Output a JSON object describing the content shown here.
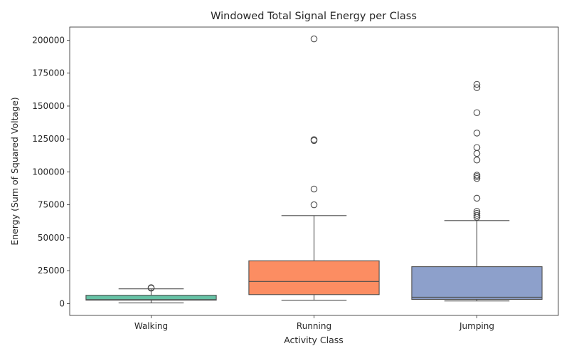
{
  "chart_data": {
    "type": "box",
    "title": "Windowed Total Signal Energy per Class",
    "xlabel": "Activity Class",
    "ylabel": "Energy (Sum of Squared Voltage)",
    "ylim": [
      -9000,
      210000
    ],
    "yticks": [
      0,
      25000,
      50000,
      75000,
      100000,
      125000,
      150000,
      175000,
      200000
    ],
    "grid": false,
    "categories": [
      "Walking",
      "Running",
      "Jumping"
    ],
    "boxes": [
      {
        "category": "Walking",
        "color": "#66c2a5",
        "whisker_low": 500,
        "q1": 2600,
        "median": 3000,
        "q3": 6300,
        "whisker_high": 11200,
        "outliers": [
          11700,
          12100
        ]
      },
      {
        "category": "Running",
        "color": "#fc8d62",
        "whisker_low": 2500,
        "q1": 6800,
        "median": 16800,
        "q3": 32500,
        "whisker_high": 66800,
        "outliers": [
          75000,
          87000,
          123800,
          124500,
          201000
        ]
      },
      {
        "category": "Jumping",
        "color": "#8da0cb",
        "whisker_low": 2000,
        "q1": 3200,
        "median": 4800,
        "q3": 28000,
        "whisker_high": 63000,
        "outliers": [
          65500,
          67000,
          68500,
          70000,
          80000,
          95000,
          96500,
          97500,
          109000,
          114000,
          118500,
          129500,
          145000,
          164000,
          166500
        ]
      }
    ]
  }
}
